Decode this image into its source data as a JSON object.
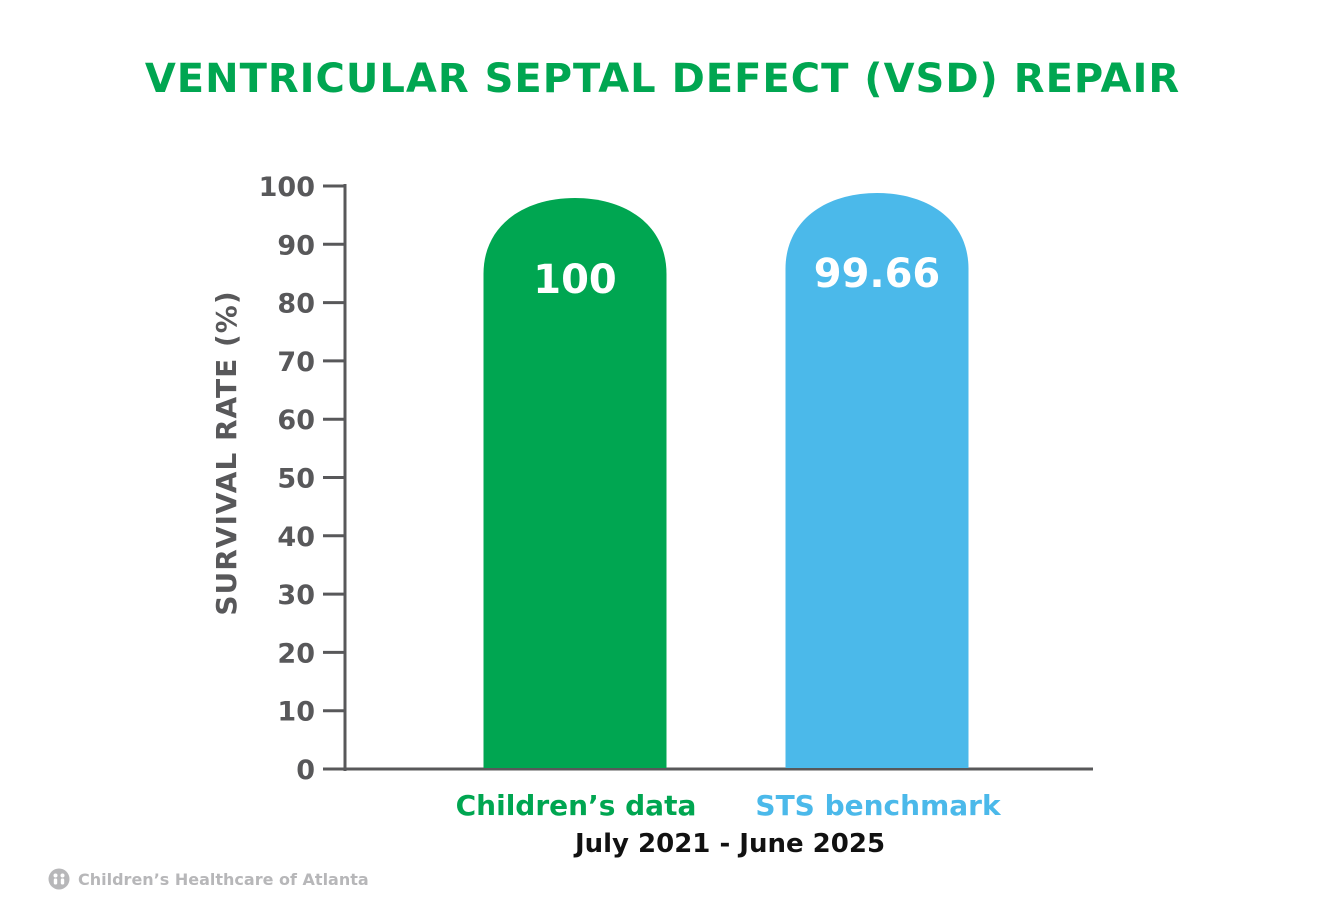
{
  "chart_data": {
    "type": "bar",
    "title": "VENTRICULAR SEPTAL DEFECT (VSD) REPAIR",
    "ylabel": "SURVIVAL RATE (%)",
    "xlabel": "July 2021 - June 2025",
    "ylim": [
      0,
      100
    ],
    "yticks": [
      0,
      10,
      20,
      30,
      40,
      50,
      60,
      70,
      80,
      90,
      100
    ],
    "categories": [
      "Children’s data",
      "STS benchmark"
    ],
    "values": [
      100,
      99.66
    ],
    "value_labels": [
      "100",
      "99.66"
    ],
    "colors": [
      "#00a651",
      "#4bb9ea"
    ],
    "grid": false,
    "legend": "none"
  },
  "footer": {
    "brand_name": "Children’s Healthcare of Atlanta"
  },
  "colors": {
    "title": "#00a651",
    "axis": "#58585a",
    "brand": "#b7b7b9"
  }
}
